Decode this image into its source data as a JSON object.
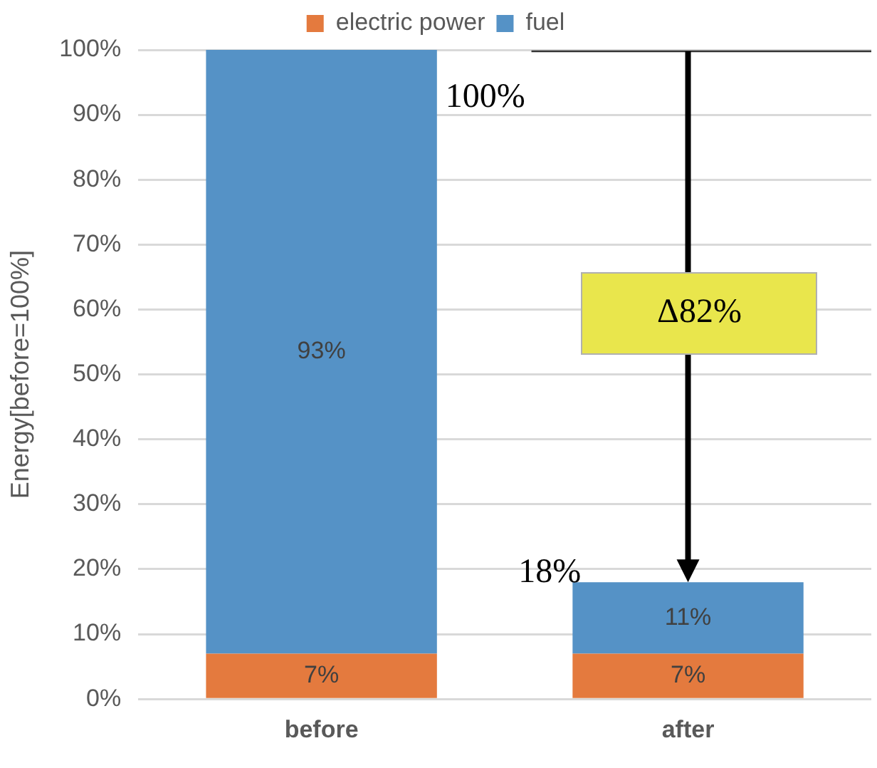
{
  "chart_data": {
    "type": "bar",
    "stacked": true,
    "ylabel": "Energy[before=100%]",
    "categories": [
      "before",
      "after"
    ],
    "series": [
      {
        "name": "electric power",
        "color": "#e47a3e",
        "values": [
          7,
          7
        ],
        "value_labels": [
          "7%",
          "7%"
        ]
      },
      {
        "name": "fuel",
        "color": "#5592c6",
        "values": [
          93,
          11
        ],
        "value_labels": [
          "93%",
          "11%"
        ]
      }
    ],
    "ylim": [
      0,
      100
    ],
    "yticks": [
      {
        "value": 0,
        "label": "0%"
      },
      {
        "value": 10,
        "label": "10%"
      },
      {
        "value": 20,
        "label": "20%"
      },
      {
        "value": 30,
        "label": "30%"
      },
      {
        "value": 40,
        "label": "40%"
      },
      {
        "value": 50,
        "label": "50%"
      },
      {
        "value": 60,
        "label": "60%"
      },
      {
        "value": 70,
        "label": "70%"
      },
      {
        "value": 80,
        "label": "80%"
      },
      {
        "value": 90,
        "label": "90%"
      },
      {
        "value": 100,
        "label": "100%"
      }
    ],
    "grid": "y",
    "legend": "top",
    "annotations": [
      "100%",
      "18%",
      "Δ82%"
    ]
  }
}
